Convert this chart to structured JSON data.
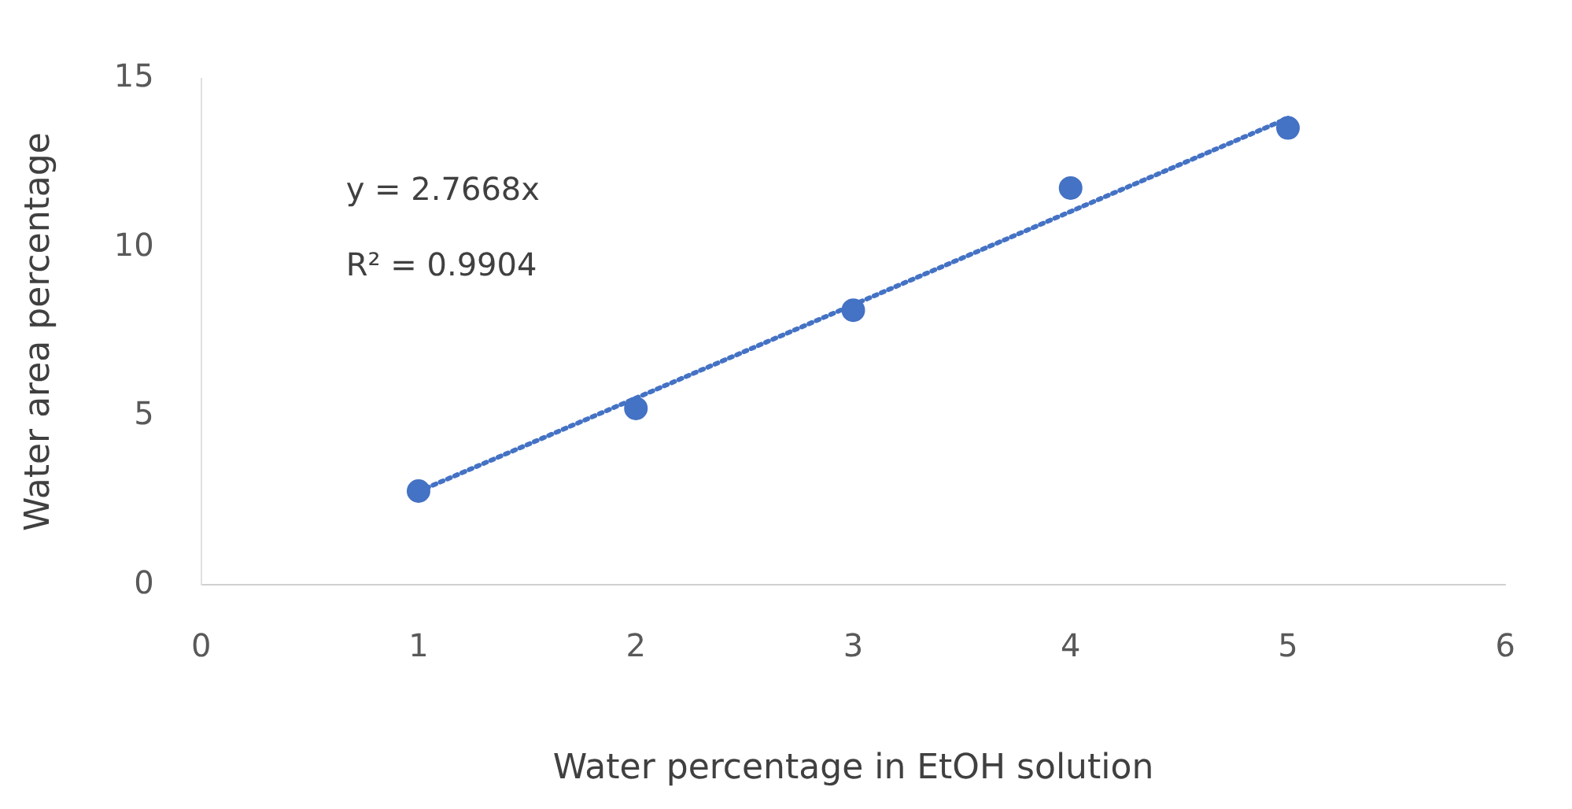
{
  "chart_data": {
    "type": "scatter",
    "xlabel": "Water percentage in EtOH solution",
    "ylabel": "Water area percentage",
    "xlim": [
      0,
      6
    ],
    "xticks": [
      0,
      1,
      2,
      3,
      4,
      5,
      6
    ],
    "ylim": [
      0,
      15
    ],
    "yticks": [
      0,
      5,
      10,
      15
    ],
    "grid": false,
    "legend": false,
    "marker": "circle",
    "annotations": [
      "y = 2.7668x",
      "R² = 0.9904"
    ],
    "series": [
      {
        "color": "#4472c4",
        "x": [
          1,
          2,
          3,
          4,
          5
        ],
        "values": [
          2.78,
          5.23,
          8.14,
          11.76,
          13.54
        ]
      },
      {
        "type": "line",
        "color": "#4472c4",
        "line_style": "dotted",
        "marker": "none",
        "x": [
          1,
          5
        ],
        "values": [
          2.77,
          13.83
        ]
      }
    ]
  }
}
